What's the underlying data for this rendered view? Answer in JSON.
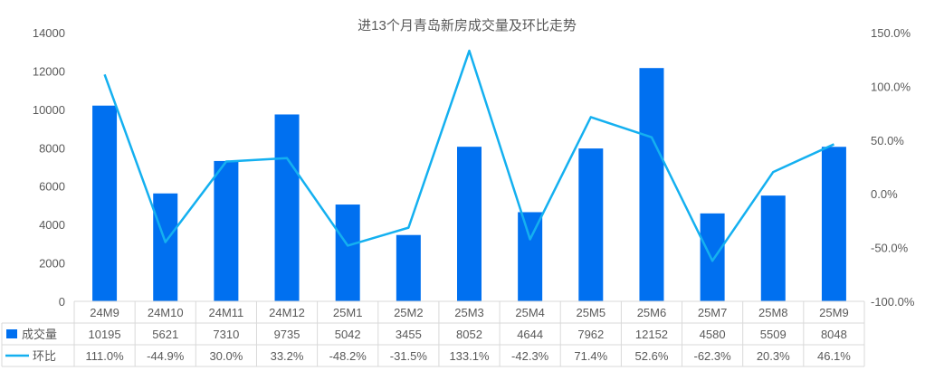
{
  "chart_data": {
    "type": "bar",
    "title": "进13个月青岛新房成交量及环比走势",
    "categories": [
      "24M9",
      "24M10",
      "24M11",
      "24M12",
      "25M1",
      "25M2",
      "25M3",
      "25M4",
      "25M5",
      "25M6",
      "25M7",
      "25M8",
      "25M9"
    ],
    "series": [
      {
        "name": "成交量",
        "type": "bar",
        "axis": "left",
        "values": [
          10195,
          5621,
          7310,
          9735,
          5042,
          3455,
          8052,
          4644,
          7962,
          12152,
          4580,
          5509,
          8048
        ],
        "labels": [
          "10195",
          "5621",
          "7310",
          "9735",
          "5042",
          "3455",
          "8052",
          "4644",
          "7962",
          "12152",
          "4580",
          "5509",
          "8048"
        ]
      },
      {
        "name": "环比",
        "type": "line",
        "axis": "right",
        "values": [
          111.0,
          -44.9,
          30.0,
          33.2,
          -48.2,
          -31.5,
          133.1,
          -42.3,
          71.4,
          52.6,
          -62.3,
          20.3,
          46.1
        ],
        "labels": [
          "111.0%",
          "-44.9%",
          "30.0%",
          "33.2%",
          "-48.2%",
          "-31.5%",
          "133.1%",
          "-42.3%",
          "71.4%",
          "52.6%",
          "-62.3%",
          "20.3%",
          "46.1%"
        ]
      }
    ],
    "ylim_left": [
      0,
      14000
    ],
    "yticks_left": [
      "0",
      "2000",
      "4000",
      "6000",
      "8000",
      "10000",
      "12000",
      "14000"
    ],
    "ylim_right": [
      -100,
      150
    ],
    "yticks_right": [
      "-100.0%",
      "-50.0%",
      "0.0%",
      "50.0%",
      "100.0%",
      "150.0%"
    ],
    "colors": {
      "bar": "#0070F0",
      "line": "#14B0F0",
      "grid": "#D9D9D9",
      "text": "#595959"
    },
    "legend_position": "data-table",
    "grid": false
  }
}
